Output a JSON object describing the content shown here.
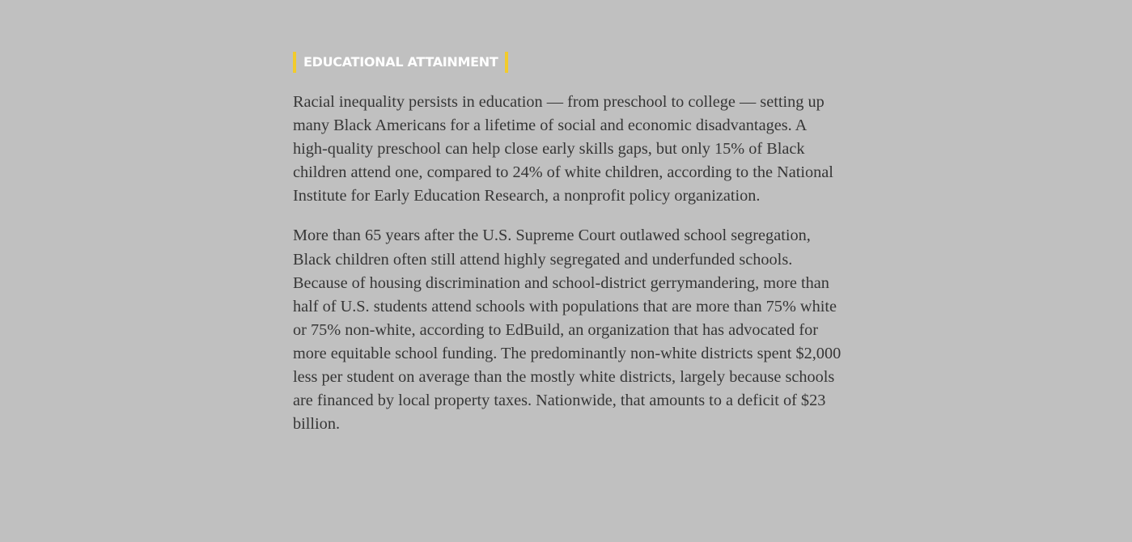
{
  "section": {
    "label": "EDUCATIONAL ATTAINMENT",
    "accent_color": "#f2cb2b"
  },
  "paragraphs": [
    "Racial inequality persists in education — from preschool to college — setting up many Black Americans for a lifetime of social and economic disadvantages. A high-quality preschool can help close early skills gaps, but only 15% of Black children attend one, compared to 24% of white children, according to the National Institute for Early Education Research, a nonprofit policy organization.",
    "More than 65 years after the U.S. Supreme Court outlawed school segregation, Black children often still attend highly segregated and underfunded schools. Because of housing discrimination and school-district gerrymandering, more than half of U.S. students attend schools with populations that are more than 75% white or 75% non-white, according to EdBuild, an organization that has advocated for more equitable school funding. The predominantly non-white districts spent $2,000 less per student on average than the mostly white districts, largely because schools are financed by local property taxes. Nationwide, that amounts to a deficit of $23 billion."
  ]
}
